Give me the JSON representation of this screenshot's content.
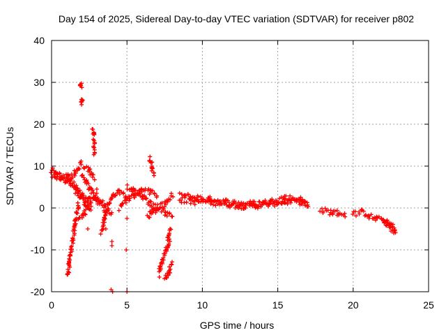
{
  "chart_data": {
    "type": "scatter",
    "title": "Day 154 of 2025, Sidereal Day-to-day VTEC variation (SDTVAR) for receiver p802",
    "xlabel": "GPS time / hours",
    "ylabel": "SDTVAR / TECUs",
    "xlim": [
      0,
      25
    ],
    "ylim": [
      -20,
      40
    ],
    "xticks": [
      0,
      5,
      10,
      15,
      20,
      25
    ],
    "yticks": [
      -20,
      -10,
      0,
      10,
      20,
      30,
      40
    ],
    "grid": true,
    "marker": "+",
    "color": "#ff0000",
    "series": [
      {
        "name": "SDTVAR",
        "description": "dense tracks of per-satellite samples",
        "segments": [
          {
            "x": [
              0.0,
              0.5,
              1.0
            ],
            "y": [
              8,
              7,
              6
            ]
          },
          {
            "x": [
              0.0,
              0.5,
              1.0,
              1.5,
              2.0
            ],
            "y": [
              9.5,
              8,
              6.5,
              8,
              11
            ]
          },
          {
            "x": [
              1.0,
              1.3,
              1.6,
              2.0,
              2.5,
              3.0,
              3.5
            ],
            "y": [
              8,
              6,
              4,
              3,
              2,
              1.5,
              1
            ]
          },
          {
            "x": [
              1.05,
              1.3,
              1.55,
              1.8
            ],
            "y": [
              -16,
              -10,
              -4,
              1
            ]
          },
          {
            "x": [
              1.5,
              1.9,
              2.2,
              2.6
            ],
            "y": [
              6,
              3,
              1,
              0
            ]
          },
          {
            "x": [
              1.8,
              2.2,
              2.6,
              3.0
            ],
            "y": [
              -3,
              -1,
              1,
              3
            ]
          },
          {
            "x": [
              2.0,
              2.5,
              3.0,
              3.5,
              4.0
            ],
            "y": [
              8,
              5,
              2,
              0,
              -1
            ]
          },
          {
            "x": [
              2.1,
              2.5,
              2.8
            ],
            "y": [
              10,
              9,
              7
            ]
          },
          {
            "x": [
              3.3,
              3.55,
              3.8,
              4.1,
              4.5,
              5.0
            ],
            "y": [
              -6,
              -2,
              1,
              3,
              4,
              3
            ]
          },
          {
            "x": [
              4.5,
              5.0,
              5.5,
              6.0,
              6.5,
              7.0
            ],
            "y": [
              0,
              2,
              3,
              4,
              4,
              3
            ]
          },
          {
            "x": [
              5.0,
              5.5,
              6.0,
              6.5,
              7.0,
              7.5,
              8.0
            ],
            "y": [
              5,
              4,
              3,
              1,
              0,
              -1,
              -2
            ]
          },
          {
            "x": [
              6.4,
              6.7,
              7.0,
              7.5,
              8.0
            ],
            "y": [
              -2,
              -1,
              0,
              1,
              3
            ]
          },
          {
            "x": [
              6.5,
              6.8
            ],
            "y": [
              12,
              8
            ]
          },
          {
            "x": [
              7.1,
              7.3,
              7.6,
              7.8
            ],
            "y": [
              -16,
              -13,
              -10,
              -8
            ]
          },
          {
            "x": [
              7.5,
              7.8,
              8.0
            ],
            "y": [
              -17,
              -15,
              -13
            ]
          },
          {
            "x": [
              7.7,
              7.9
            ],
            "y": [
              -8,
              -5
            ]
          },
          {
            "x": [
              2.75,
              2.85
            ],
            "y": [
              19,
              13
            ]
          },
          {
            "x": [
              1.9,
              2.0
            ],
            "y": [
              30,
              29
            ]
          },
          {
            "x": [
              2.0,
              2.05
            ],
            "y": [
              26,
              25
            ]
          },
          {
            "x": [
              8.5,
              9.5,
              10.5,
              11.5,
              12.5,
              13.5,
              14.5,
              15.5,
              16.5,
              17.0
            ],
            "y": [
              2,
              1.5,
              1.5,
              1,
              0.5,
              0.5,
              1,
              1.5,
              1.5,
              0.5
            ]
          },
          {
            "x": [
              8.5,
              9.5,
              10.5,
              11.5,
              12.5,
              13.5,
              14.5,
              15.5,
              16.5,
              17.0
            ],
            "y": [
              3,
              2.5,
              2,
              1.5,
              1,
              1,
              1.5,
              2.5,
              2,
              1
            ]
          },
          {
            "x": [
              17.8,
              18.5,
              19.0,
              19.5
            ],
            "y": [
              -0.5,
              -1,
              -1.2,
              -1.5
            ]
          },
          {
            "x": [
              20.0,
              20.5,
              21.0
            ],
            "y": [
              -1.5,
              -1,
              -1.5
            ]
          },
          {
            "x": [
              21.0,
              21.5,
              22.0,
              22.5,
              22.8
            ],
            "y": [
              -2,
              -2.5,
              -3,
              -4,
              -5
            ]
          },
          {
            "x": [
              22.0,
              22.4,
              22.8
            ],
            "y": [
              -3,
              -4.5,
              -6
            ]
          }
        ],
        "isolated_points": [
          {
            "x": 3.0,
            "y": 4.5
          },
          {
            "x": 4.0,
            "y": -8
          },
          {
            "x": 4.0,
            "y": -9
          },
          {
            "x": 3.95,
            "y": -19.5
          },
          {
            "x": 4.05,
            "y": -20
          },
          {
            "x": 4.95,
            "y": -10
          },
          {
            "x": 5.0,
            "y": -20
          },
          {
            "x": 5.0,
            "y": -2.5
          },
          {
            "x": 3.6,
            "y": -5
          },
          {
            "x": 2.4,
            "y": -5
          }
        ]
      }
    ]
  }
}
